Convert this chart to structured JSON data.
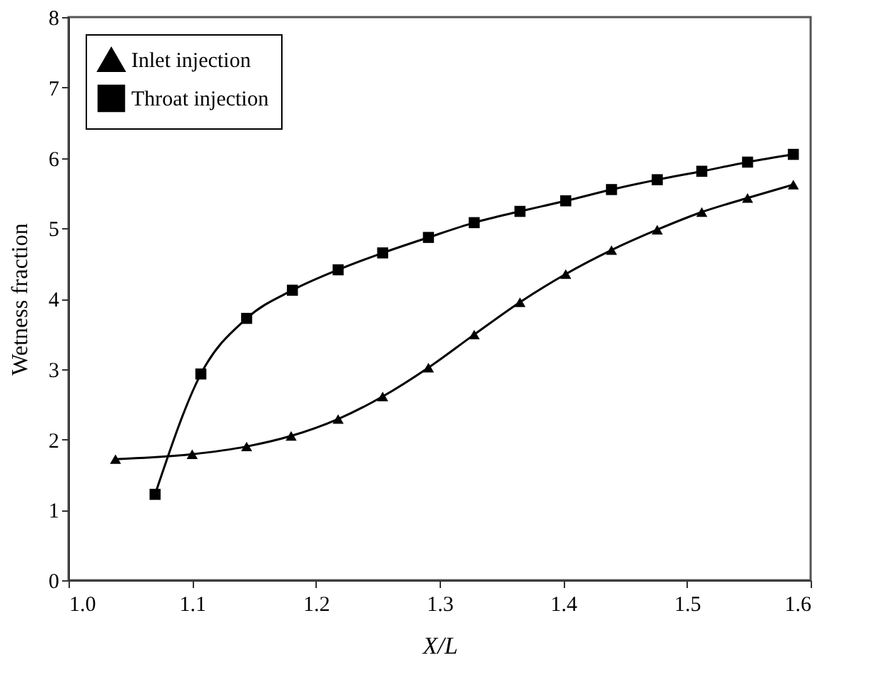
{
  "chart_data": {
    "type": "line",
    "xlabel": "X/L",
    "ylabel": "Wetness fraction",
    "xlim": [
      1.0,
      1.6
    ],
    "xticks": [
      {
        "value": 1,
        "label": "1.0"
      },
      1.1,
      1.2,
      1.3,
      1.4,
      1.5,
      {
        "value": 1.6,
        "label": "1.6"
      }
    ],
    "ylim": [
      0,
      8
    ],
    "yticks": [
      0,
      1,
      2,
      3,
      4,
      5,
      6,
      7,
      8
    ],
    "grid": false,
    "legend": "top left",
    "line_style": "solid",
    "series": [
      {
        "name": "Inlet injection",
        "color": "#000000",
        "marker": "triangle",
        "x": [
          1.038,
          1.1,
          1.144,
          1.18,
          1.218,
          1.254,
          1.291,
          1.328,
          1.365,
          1.402,
          1.439,
          1.476,
          1.512,
          1.549,
          1.586
        ],
        "values": [
          1.72,
          1.79,
          1.9,
          2.05,
          2.29,
          2.61,
          3.02,
          3.49,
          3.95,
          4.35,
          4.69,
          4.98,
          5.23,
          5.43,
          5.62
        ]
      },
      {
        "name": "Throat injection",
        "color": "#000000",
        "marker": "square",
        "x": [
          1.07,
          1.107,
          1.144,
          1.181,
          1.218,
          1.254,
          1.291,
          1.328,
          1.365,
          1.402,
          1.439,
          1.476,
          1.512,
          1.549,
          1.586
        ],
        "values": [
          1.22,
          2.93,
          3.72,
          4.12,
          4.41,
          4.65,
          4.87,
          5.08,
          5.24,
          5.39,
          5.55,
          5.69,
          5.81,
          5.94,
          6.05
        ]
      }
    ]
  }
}
